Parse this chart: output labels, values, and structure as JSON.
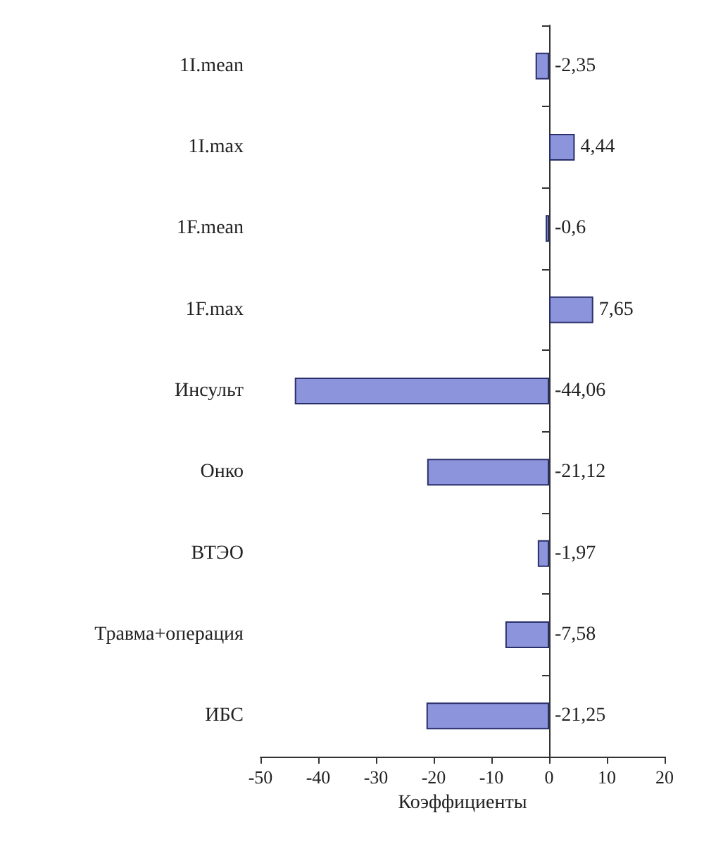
{
  "chart_data": {
    "type": "bar",
    "orientation": "horizontal",
    "xlabel": "Коэффициенты",
    "categories": [
      "1I.mean",
      "1I.max",
      "1F.mean",
      "1F.max",
      "Инсульт",
      "Онко",
      "ВТЭО",
      "Травма+операция",
      "ИБС"
    ],
    "values": [
      -2.35,
      4.44,
      -0.6,
      7.65,
      -44.06,
      -21.12,
      -1.97,
      -7.58,
      -21.25
    ],
    "value_labels": [
      "-2,35",
      "4,44",
      "-0,6",
      "7,65",
      "-44,06",
      "-21,12",
      "-1,97",
      "-7,58",
      "-21,25"
    ],
    "color": "#8c95dc",
    "xlim": [
      -50,
      20
    ],
    "xticks": [
      -50,
      -40,
      -30,
      -20,
      -10,
      0,
      10,
      20
    ]
  }
}
